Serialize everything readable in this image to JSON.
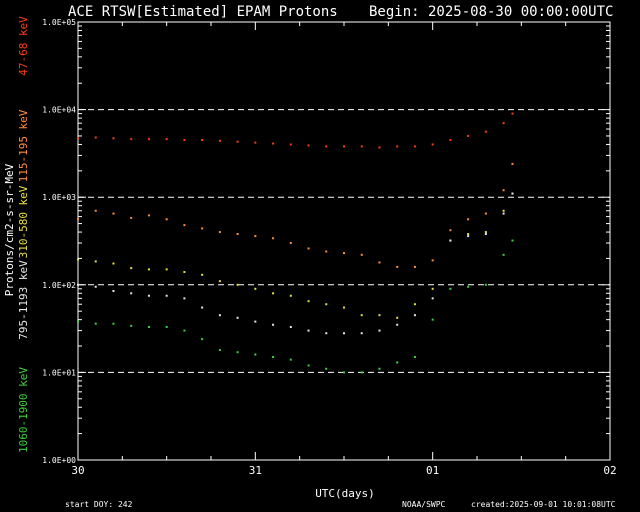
{
  "title": {
    "left": "ACE RTSW[Estimated] EPAM Protons",
    "right": "Begin: 2025-08-30 00:00:00UTC"
  },
  "footer": {
    "start_doy": "start DOY: 242",
    "agency": "NOAA/SWPC",
    "created": "created:2025-09-01 10:01:08UTC"
  },
  "chart_data": {
    "type": "scatter",
    "title": "ACE RTSW[Estimated] EPAM Protons",
    "xlabel": "UTC(days)",
    "ylabel": "Protons/cm2-s-sr-MeV",
    "yscale": "log",
    "ylim": [
      1,
      100000
    ],
    "xlim_days": [
      0,
      3
    ],
    "xticks": [
      {
        "day": 0,
        "label": "30"
      },
      {
        "day": 1,
        "label": "31"
      },
      {
        "day": 2,
        "label": "01"
      },
      {
        "day": 3,
        "label": "02"
      }
    ],
    "yticks": [
      {
        "value": 1,
        "label": "1.0E+00"
      },
      {
        "value": 10,
        "label": "1.0E+01"
      },
      {
        "value": 100,
        "label": "1.0E+02"
      },
      {
        "value": 1000,
        "label": "1.0E+03"
      },
      {
        "value": 10000,
        "label": "1.0E+04"
      },
      {
        "value": 100000,
        "label": "1.0E+05"
      }
    ],
    "dashed_gridlines": [
      10,
      100,
      1000,
      10000
    ],
    "series": [
      {
        "name": "47-68 keV",
        "color": "#ff3b10",
        "x": [
          0.0,
          0.1,
          0.2,
          0.3,
          0.4,
          0.5,
          0.6,
          0.7,
          0.8,
          0.9,
          1.0,
          1.1,
          1.2,
          1.3,
          1.4,
          1.5,
          1.6,
          1.7,
          1.8,
          1.9,
          2.0,
          2.1,
          2.2,
          2.3,
          2.4,
          2.45
        ],
        "y": [
          4700,
          4800,
          4700,
          4600,
          4600,
          4600,
          4500,
          4500,
          4400,
          4300,
          4200,
          4100,
          4000,
          3900,
          3800,
          3800,
          3800,
          3700,
          3800,
          3800,
          4000,
          4500,
          5000,
          5600,
          7000,
          9000
        ]
      },
      {
        "name": "115-195 keV",
        "color": "#ff8c3a",
        "x": [
          0.0,
          0.1,
          0.2,
          0.3,
          0.4,
          0.5,
          0.6,
          0.7,
          0.8,
          0.9,
          1.0,
          1.1,
          1.2,
          1.3,
          1.4,
          1.5,
          1.6,
          1.7,
          1.8,
          1.9,
          2.0,
          2.1,
          2.2,
          2.3,
          2.4,
          2.45
        ],
        "y": [
          560,
          700,
          650,
          580,
          620,
          560,
          480,
          440,
          400,
          380,
          360,
          340,
          300,
          260,
          240,
          230,
          220,
          180,
          160,
          160,
          190,
          420,
          560,
          650,
          1200,
          2400
        ]
      },
      {
        "name": "310-580 keV",
        "color": "#e8e03a",
        "x": [
          0.0,
          0.1,
          0.2,
          0.3,
          0.4,
          0.5,
          0.6,
          0.7,
          0.8,
          0.9,
          1.0,
          1.1,
          1.2,
          1.3,
          1.4,
          1.5,
          1.6,
          1.7,
          1.8,
          1.9,
          2.0,
          2.1,
          2.2,
          2.3,
          2.4,
          2.45
        ],
        "y": [
          195,
          185,
          175,
          155,
          150,
          150,
          140,
          130,
          110,
          100,
          90,
          80,
          75,
          65,
          60,
          55,
          45,
          45,
          42,
          60,
          90,
          320,
          380,
          400,
          700,
          1100
        ]
      },
      {
        "name": "795-1193 keV",
        "color": "#e6e6e6",
        "x": [
          0.0,
          0.1,
          0.2,
          0.3,
          0.4,
          0.5,
          0.6,
          0.7,
          0.8,
          0.9,
          1.0,
          1.1,
          1.2,
          1.3,
          1.4,
          1.5,
          1.6,
          1.7,
          1.8,
          1.9,
          2.0,
          2.1,
          2.2,
          2.3,
          2.4,
          2.45
        ],
        "y": [
          100,
          95,
          85,
          80,
          75,
          75,
          70,
          55,
          45,
          42,
          38,
          35,
          33,
          30,
          28,
          28,
          28,
          30,
          35,
          45,
          70,
          320,
          360,
          380,
          650,
          1100
        ]
      },
      {
        "name": "1060-1900 keV",
        "color": "#3cd23c",
        "x": [
          0.0,
          0.1,
          0.2,
          0.3,
          0.4,
          0.5,
          0.6,
          0.7,
          0.8,
          0.9,
          1.0,
          1.1,
          1.2,
          1.3,
          1.4,
          1.5,
          1.6,
          1.7,
          1.8,
          1.9,
          2.0,
          2.1,
          2.2,
          2.3,
          2.4,
          2.45
        ],
        "y": [
          38,
          36,
          36,
          34,
          33,
          33,
          30,
          24,
          18,
          17,
          16,
          15,
          14,
          12,
          11,
          10,
          10,
          11,
          13,
          15,
          40,
          90,
          95,
          100,
          220,
          320
        ]
      }
    ]
  }
}
